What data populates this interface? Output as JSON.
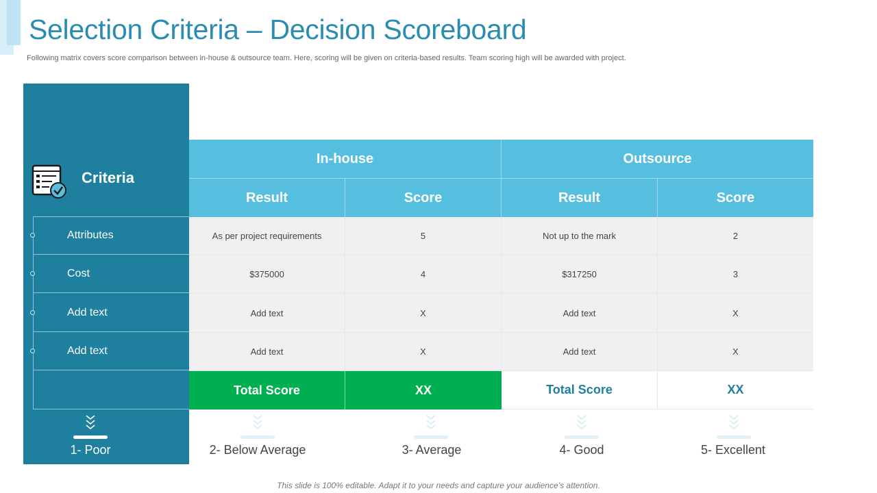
{
  "slide": {
    "title": "Selection Criteria – Decision Scoreboard",
    "subtitle": "Following matrix covers score comparison between in-house & outsource team. Here, scoring will be given on criteria-based results. Team scoring high will be awarded with project.",
    "footer": "This slide is 100% editable. Adapt it to your needs and capture your audience’s attention."
  },
  "criteria": {
    "title": "Criteria",
    "icon": "checklist-icon",
    "items": [
      "Attributes",
      "Cost",
      "Add text",
      "Add text"
    ]
  },
  "table": {
    "groups": [
      "In-house",
      "Outsource"
    ],
    "subheaders": [
      "Result",
      "Score",
      "Result",
      "Score"
    ],
    "rows": [
      [
        "As per project requirements",
        "5",
        "Not up to the mark",
        "2"
      ],
      [
        "$375000",
        "4",
        "$317250",
        "3"
      ],
      [
        "Add text",
        "X",
        "Add text",
        "X"
      ],
      [
        "Add text",
        "X",
        "Add text",
        "X"
      ]
    ],
    "totals": {
      "inhouse_label": "Total Score",
      "inhouse_value": "XX",
      "outsource_label": "Total Score",
      "outsource_value": "XX"
    }
  },
  "scale": [
    "1- Poor",
    "2- Below Average",
    "3- Average",
    "4- Good",
    "5- Excellent"
  ],
  "colors": {
    "panel": "#1f7f9e",
    "header": "#56bfe0",
    "highlight": "#00b050",
    "title": "#2a8db0"
  }
}
